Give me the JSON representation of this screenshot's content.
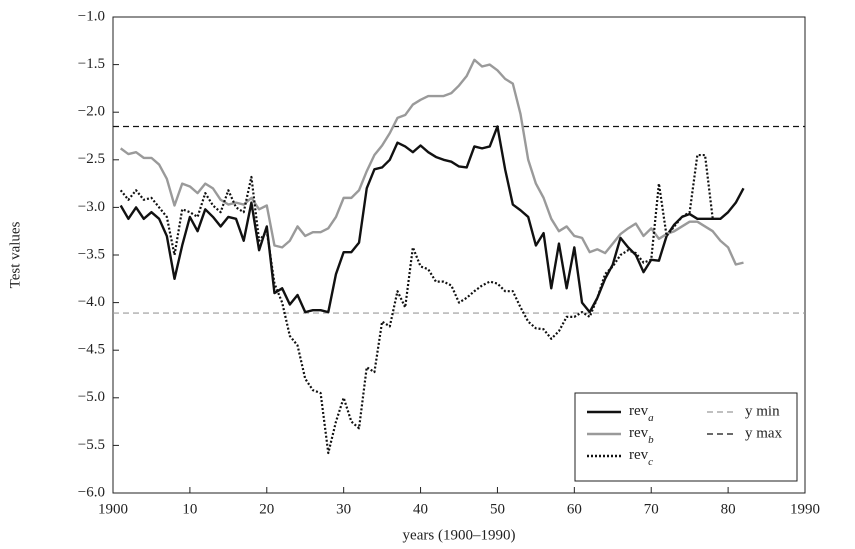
{
  "chart_data": {
    "type": "line",
    "xlabel": "years (1900–1990)",
    "ylabel": "Test values",
    "x": [
      1901,
      1902,
      1903,
      1904,
      1905,
      1906,
      1907,
      1908,
      1909,
      1910,
      1911,
      1912,
      1913,
      1914,
      1915,
      1916,
      1917,
      1918,
      1919,
      1920,
      1921,
      1922,
      1923,
      1924,
      1925,
      1926,
      1927,
      1928,
      1929,
      1930,
      1931,
      1932,
      1933,
      1934,
      1935,
      1936,
      1937,
      1938,
      1939,
      1940,
      1941,
      1942,
      1943,
      1944,
      1945,
      1946,
      1947,
      1948,
      1949,
      1950,
      1951,
      1952,
      1953,
      1954,
      1955,
      1956,
      1957,
      1958,
      1959,
      1960,
      1961,
      1962,
      1963,
      1964,
      1965,
      1966,
      1967,
      1968,
      1969,
      1970,
      1971,
      1972,
      1973,
      1974,
      1975,
      1976,
      1977,
      1978,
      1979,
      1980,
      1981,
      1982
    ],
    "series": [
      {
        "name": "rev",
        "name_sub": "a",
        "color": "#111111",
        "dash": "solid",
        "values": [
          -2.98,
          -3.12,
          -3.0,
          -3.12,
          -3.05,
          -3.12,
          -3.3,
          -3.75,
          -3.4,
          -3.1,
          -3.25,
          -3.02,
          -3.1,
          -3.2,
          -3.1,
          -3.12,
          -3.35,
          -2.95,
          -3.45,
          -3.2,
          -3.9,
          -3.85,
          -4.02,
          -3.92,
          -4.1,
          -4.08,
          -4.08,
          -4.1,
          -3.7,
          -3.47,
          -3.47,
          -3.37,
          -2.8,
          -2.6,
          -2.58,
          -2.5,
          -2.32,
          -2.36,
          -2.42,
          -2.35,
          -2.42,
          -2.47,
          -2.5,
          -2.52,
          -2.57,
          -2.58,
          -2.36,
          -2.38,
          -2.36,
          -2.15,
          -2.6,
          -2.97,
          -3.03,
          -3.1,
          -3.4,
          -3.27,
          -3.85,
          -3.38,
          -3.85,
          -3.42,
          -4.0,
          -4.1,
          -3.95,
          -3.75,
          -3.6,
          -3.32,
          -3.42,
          -3.5,
          -3.68,
          -3.55,
          -3.56,
          -3.3,
          -3.18,
          -3.1,
          -3.07,
          -3.12,
          -3.12,
          -3.12,
          -3.12,
          -3.05,
          -2.95,
          -2.8
        ]
      },
      {
        "name": "rev",
        "name_sub": "b",
        "color": "#9a9a9a",
        "dash": "solid",
        "values": [
          -2.38,
          -2.44,
          -2.42,
          -2.48,
          -2.48,
          -2.55,
          -2.7,
          -2.98,
          -2.75,
          -2.78,
          -2.85,
          -2.75,
          -2.8,
          -2.92,
          -2.97,
          -2.95,
          -2.97,
          -2.9,
          -3.02,
          -2.98,
          -3.4,
          -3.42,
          -3.35,
          -3.2,
          -3.3,
          -3.26,
          -3.26,
          -3.22,
          -3.1,
          -2.9,
          -2.9,
          -2.82,
          -2.62,
          -2.45,
          -2.35,
          -2.22,
          -2.06,
          -2.03,
          -1.92,
          -1.87,
          -1.83,
          -1.83,
          -1.83,
          -1.8,
          -1.72,
          -1.62,
          -1.45,
          -1.52,
          -1.5,
          -1.56,
          -1.65,
          -1.7,
          -2.02,
          -2.5,
          -2.75,
          -2.9,
          -3.12,
          -3.25,
          -3.2,
          -3.3,
          -3.32,
          -3.47,
          -3.44,
          -3.48,
          -3.38,
          -3.28,
          -3.22,
          -3.17,
          -3.3,
          -3.22,
          -3.33,
          -3.28,
          -3.25,
          -3.2,
          -3.15,
          -3.15,
          -3.2,
          -3.25,
          -3.35,
          -3.42,
          -3.6,
          -3.58
        ]
      },
      {
        "name": "rev",
        "name_sub": "c",
        "color": "#111111",
        "dash": "dotted",
        "values": [
          -2.82,
          -2.92,
          -2.82,
          -2.92,
          -2.9,
          -3.0,
          -3.1,
          -3.5,
          -3.02,
          -3.05,
          -3.1,
          -2.85,
          -2.98,
          -3.05,
          -2.82,
          -3.0,
          -3.05,
          -2.68,
          -3.35,
          -3.25,
          -3.8,
          -4.0,
          -4.35,
          -4.45,
          -4.8,
          -4.92,
          -4.95,
          -5.58,
          -5.25,
          -5.0,
          -5.25,
          -5.32,
          -4.68,
          -4.73,
          -4.2,
          -4.25,
          -3.88,
          -4.05,
          -3.42,
          -3.62,
          -3.65,
          -3.78,
          -3.78,
          -3.82,
          -4.0,
          -3.95,
          -3.88,
          -3.82,
          -3.78,
          -3.8,
          -3.88,
          -3.88,
          -4.05,
          -4.2,
          -4.27,
          -4.28,
          -4.38,
          -4.3,
          -4.15,
          -4.15,
          -4.1,
          -4.15,
          -3.95,
          -3.7,
          -3.62,
          -3.5,
          -3.45,
          -3.48,
          -3.58,
          -3.55,
          -2.75,
          -3.3,
          -3.2,
          -3.1,
          -3.05,
          -2.45,
          -2.45,
          -3.12,
          null,
          null,
          null,
          null
        ]
      }
    ],
    "reference_lines": [
      {
        "name": "y min",
        "value": -4.11,
        "color": "#9a9a9a",
        "dash": "dashed"
      },
      {
        "name": "y max",
        "value": -2.15,
        "color": "#111111",
        "dash": "dashed"
      }
    ],
    "xlim": [
      1900,
      1990
    ],
    "xticks": [
      {
        "value": 1900,
        "label": "1900"
      },
      {
        "value": 1910,
        "label": "10"
      },
      {
        "value": 1920,
        "label": "20"
      },
      {
        "value": 1930,
        "label": "30"
      },
      {
        "value": 1940,
        "label": "40"
      },
      {
        "value": 1950,
        "label": "50"
      },
      {
        "value": 1960,
        "label": "60"
      },
      {
        "value": 1970,
        "label": "70"
      },
      {
        "value": 1980,
        "label": "80"
      },
      {
        "value": 1990,
        "label": "1990"
      }
    ],
    "ylim": [
      -6,
      -1
    ],
    "yticks": [
      {
        "value": -1,
        "label": "−1.0"
      },
      {
        "value": -1.5,
        "label": "−1.5"
      },
      {
        "value": -2,
        "label": "−2.0"
      },
      {
        "value": -2.5,
        "label": "−2.5"
      },
      {
        "value": -3,
        "label": "−3.0"
      },
      {
        "value": -3.5,
        "label": "−3.5"
      },
      {
        "value": -4,
        "label": "−4.0"
      },
      {
        "value": -4.5,
        "label": "−4.5"
      },
      {
        "value": -5,
        "label": "−5.0"
      },
      {
        "value": -5.5,
        "label": "−5.5"
      },
      {
        "value": -6,
        "label": "−6.0"
      }
    ],
    "grid": false,
    "legend": "lower right"
  }
}
